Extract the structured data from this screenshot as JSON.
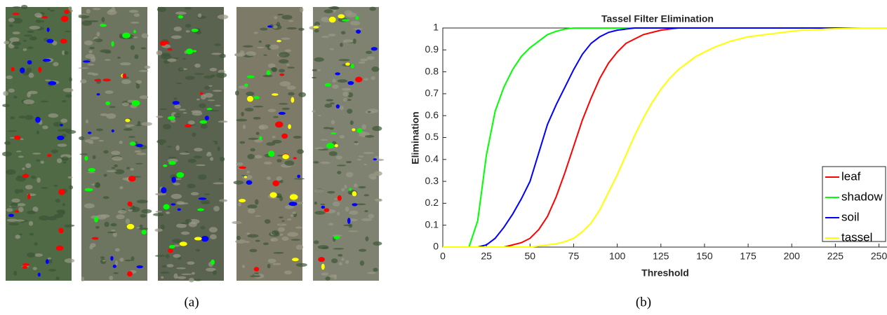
{
  "chart_data": {
    "type": "line",
    "title": "Tassel Filter Elimination",
    "xlabel": "Threshold",
    "ylabel": "Elimination",
    "x": [
      0,
      5,
      10,
      15,
      20,
      25,
      30,
      35,
      40,
      45,
      50,
      55,
      60,
      65,
      70,
      75,
      80,
      85,
      90,
      95,
      100,
      105,
      110,
      115,
      120,
      125,
      130,
      135,
      140,
      145,
      150,
      155,
      160,
      165,
      170,
      175,
      180,
      185,
      190,
      195,
      200,
      205,
      210,
      215,
      220,
      225,
      230,
      235,
      240,
      245,
      250,
      255
    ],
    "series": [
      {
        "name": "leaf",
        "color": "#ff0000",
        "values": [
          0,
          0,
          0,
          0,
          0,
          0,
          0,
          0,
          0.01,
          0.02,
          0.04,
          0.08,
          0.14,
          0.23,
          0.34,
          0.46,
          0.58,
          0.68,
          0.77,
          0.84,
          0.89,
          0.93,
          0.95,
          0.97,
          0.98,
          0.99,
          0.995,
          1,
          1,
          1,
          1,
          1,
          1,
          1,
          1,
          1,
          1,
          1,
          1,
          1,
          1,
          1,
          1,
          1,
          1,
          1,
          1,
          1,
          1,
          1,
          1,
          1
        ]
      },
      {
        "name": "shadow",
        "color": "#00ff00",
        "values": [
          0,
          0,
          0,
          0,
          0.12,
          0.42,
          0.62,
          0.73,
          0.81,
          0.87,
          0.91,
          0.94,
          0.97,
          0.985,
          0.995,
          1,
          1,
          1,
          1,
          1,
          1,
          1,
          1,
          1,
          1,
          1,
          1,
          1,
          1,
          1,
          1,
          1,
          1,
          1,
          1,
          1,
          1,
          1,
          1,
          1,
          1,
          1,
          1,
          1,
          1,
          1,
          1,
          1,
          1,
          1,
          1,
          1
        ]
      },
      {
        "name": "soil",
        "color": "#0000ff",
        "values": [
          0,
          0,
          0,
          0,
          0,
          0.01,
          0.04,
          0.09,
          0.15,
          0.22,
          0.3,
          0.43,
          0.56,
          0.65,
          0.73,
          0.81,
          0.88,
          0.93,
          0.96,
          0.98,
          0.99,
          0.995,
          1,
          1,
          1,
          1,
          1,
          1,
          1,
          1,
          1,
          1,
          1,
          1,
          1,
          1,
          1,
          1,
          1,
          1,
          1,
          1,
          1,
          1,
          1,
          1,
          1,
          1,
          1,
          1,
          1,
          1
        ]
      },
      {
        "name": "tassel",
        "color": "#ffff00",
        "values": [
          0,
          0,
          0,
          0,
          0,
          0,
          0,
          0,
          0,
          0,
          0,
          0.005,
          0.01,
          0.015,
          0.025,
          0.04,
          0.07,
          0.11,
          0.17,
          0.25,
          0.33,
          0.42,
          0.51,
          0.59,
          0.66,
          0.72,
          0.77,
          0.81,
          0.84,
          0.87,
          0.89,
          0.91,
          0.925,
          0.94,
          0.95,
          0.96,
          0.965,
          0.97,
          0.975,
          0.98,
          0.985,
          0.99,
          0.99,
          0.993,
          0.995,
          0.997,
          0.998,
          0.999,
          1,
          1,
          1,
          1
        ]
      }
    ],
    "xlim": [
      0,
      255
    ],
    "ylim": [
      0,
      1
    ],
    "xticks": [
      0,
      25,
      50,
      75,
      100,
      125,
      150,
      175,
      200,
      225,
      250
    ],
    "yticks": [
      0,
      0.1,
      0.2,
      0.3,
      0.4,
      0.5,
      0.6,
      0.7,
      0.8,
      0.9,
      1
    ],
    "legend": "lower right"
  },
  "panels": [
    "(a)",
    "(b)"
  ]
}
